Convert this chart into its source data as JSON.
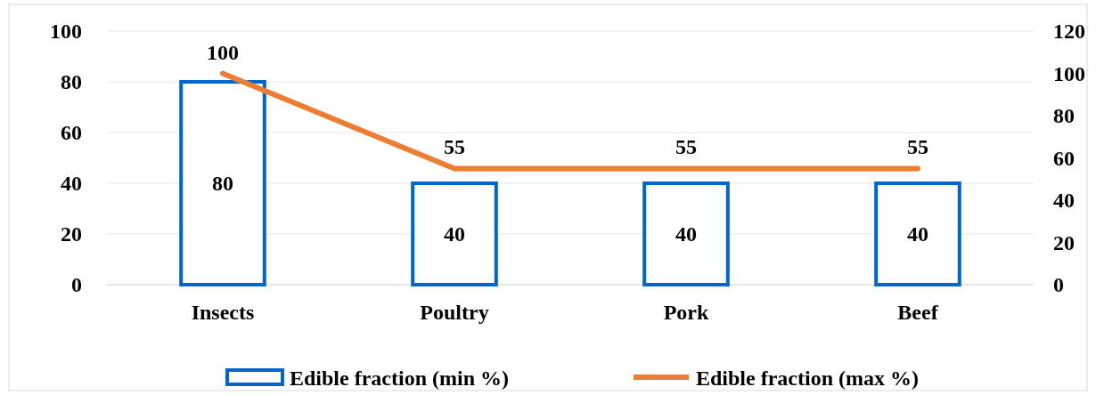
{
  "chart_data": {
    "type": "bar",
    "categories": [
      "Insects",
      "Poultry",
      "Pork",
      "Beef"
    ],
    "series": [
      {
        "name": "Edible fraction (min %)",
        "color": "#0066cc",
        "values": [
          80,
          40,
          40,
          40
        ]
      },
      {
        "name": "Edible fraction (max %)",
        "type": "line",
        "axis": "y2",
        "color": "#ed7d31",
        "values": [
          100,
          55,
          55,
          55
        ]
      }
    ],
    "ylim": [
      0,
      100
    ],
    "yticks": [
      0,
      20,
      40,
      60,
      80,
      100
    ],
    "y2lim": [
      0,
      120
    ],
    "y2ticks": [
      0,
      20,
      40,
      60,
      80,
      100,
      120
    ],
    "grid": "y",
    "legend": "bottom",
    "data_labels": true,
    "marker": "none",
    "line_style": "solid"
  }
}
